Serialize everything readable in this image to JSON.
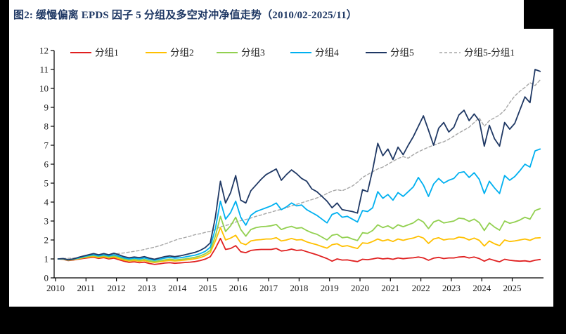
{
  "frame": {
    "bg": "#000000",
    "panel_bg": "#ffffff"
  },
  "title": {
    "text": "图2:  缓慢偏离 EPDS 因子 5 分组及多空对冲净值走势（2010/02-2025/11）",
    "color": "#1f3864"
  },
  "chart_data": {
    "type": "line",
    "title": "缓慢偏离 EPDS 因子 5 分组及多空对冲净值走势（2010/02-2025/11）",
    "xlabel": "",
    "ylabel": "",
    "ylim": [
      0,
      12
    ],
    "y_ticks": [
      0,
      1,
      2,
      3,
      4,
      5,
      6,
      7,
      8,
      9,
      10,
      11,
      12
    ],
    "x_ticks": [
      2010,
      2011,
      2012,
      2013,
      2014,
      2015,
      2016,
      2017,
      2018,
      2019,
      2020,
      2021,
      2022,
      2023,
      2024,
      2025
    ],
    "x": {
      "start": 2010.0833,
      "step": 0.16667,
      "unit": "year"
    },
    "grid": false,
    "legend_position": "top",
    "axis_color": "#000000",
    "tick_label_color": "#1a1a1a",
    "legend_label_color": "#1f1f1f",
    "series": [
      {
        "name": "分组1",
        "color": "#e02020",
        "dash": null,
        "values": [
          1.0,
          0.98,
          0.91,
          0.94,
          0.99,
          1.03,
          1.06,
          1.09,
          1.03,
          1.07,
          1.0,
          1.04,
          0.96,
          0.88,
          0.82,
          0.85,
          0.8,
          0.83,
          0.76,
          0.71,
          0.74,
          0.78,
          0.8,
          0.77,
          0.79,
          0.81,
          0.83,
          0.86,
          0.91,
          0.99,
          1.12,
          1.55,
          2.08,
          1.5,
          1.55,
          1.7,
          1.38,
          1.33,
          1.45,
          1.48,
          1.5,
          1.5,
          1.5,
          1.55,
          1.42,
          1.45,
          1.52,
          1.45,
          1.47,
          1.38,
          1.3,
          1.22,
          1.12,
          1.02,
          0.88,
          1.0,
          0.94,
          0.95,
          0.9,
          0.86,
          0.98,
          0.96,
          1.0,
          1.05,
          1.0,
          1.03,
          0.98,
          1.05,
          1.01,
          1.04,
          1.06,
          1.1,
          1.05,
          0.93,
          1.04,
          1.08,
          1.02,
          1.05,
          1.05,
          1.1,
          1.12,
          1.05,
          1.1,
          1.02,
          0.88,
          1.0,
          0.92,
          0.85,
          0.98,
          0.93,
          0.9,
          0.88,
          0.9,
          0.86,
          0.93,
          0.97
        ]
      },
      {
        "name": "分组2",
        "color": "#ffc000",
        "dash": null,
        "values": [
          1.0,
          0.99,
          0.93,
          0.96,
          1.01,
          1.06,
          1.1,
          1.13,
          1.07,
          1.12,
          1.05,
          1.1,
          1.02,
          0.94,
          0.89,
          0.92,
          0.88,
          0.91,
          0.85,
          0.81,
          0.85,
          0.89,
          0.92,
          0.89,
          0.91,
          0.94,
          0.97,
          1.01,
          1.07,
          1.17,
          1.33,
          1.95,
          2.65,
          2.0,
          2.1,
          2.25,
          1.85,
          1.75,
          1.95,
          2.0,
          2.02,
          2.05,
          2.05,
          2.12,
          1.95,
          2.0,
          2.08,
          2.0,
          2.02,
          1.9,
          1.82,
          1.75,
          1.65,
          1.57,
          1.75,
          1.8,
          1.66,
          1.7,
          1.62,
          1.55,
          1.85,
          1.82,
          1.92,
          2.05,
          1.95,
          2.02,
          1.92,
          2.05,
          1.98,
          2.05,
          2.1,
          2.2,
          2.1,
          1.82,
          2.05,
          2.12,
          2.0,
          2.05,
          2.05,
          2.15,
          2.12,
          2.0,
          2.1,
          1.98,
          1.68,
          1.95,
          1.8,
          1.7,
          2.0,
          1.92,
          1.95,
          2.0,
          2.05,
          1.98,
          2.1,
          2.12
        ]
      },
      {
        "name": "分组3",
        "color": "#92d050",
        "dash": null,
        "values": [
          1.0,
          1.0,
          0.94,
          0.98,
          1.03,
          1.09,
          1.14,
          1.18,
          1.12,
          1.17,
          1.1,
          1.16,
          1.08,
          0.99,
          0.94,
          0.97,
          0.93,
          0.97,
          0.9,
          0.86,
          0.9,
          0.95,
          0.99,
          0.95,
          0.97,
          1.0,
          1.04,
          1.09,
          1.16,
          1.27,
          1.45,
          2.2,
          3.25,
          2.45,
          2.75,
          3.2,
          2.55,
          2.2,
          2.55,
          2.65,
          2.7,
          2.72,
          2.75,
          2.82,
          2.55,
          2.65,
          2.72,
          2.62,
          2.65,
          2.5,
          2.38,
          2.3,
          2.15,
          2.0,
          2.25,
          2.3,
          2.12,
          2.15,
          2.05,
          1.97,
          2.38,
          2.35,
          2.5,
          2.8,
          2.65,
          2.75,
          2.6,
          2.8,
          2.7,
          2.8,
          2.9,
          3.1,
          2.95,
          2.6,
          2.95,
          3.05,
          2.9,
          2.95,
          3.0,
          3.15,
          3.12,
          2.98,
          3.1,
          2.92,
          2.5,
          2.9,
          2.68,
          2.52,
          3.0,
          2.88,
          2.95,
          3.05,
          3.2,
          3.1,
          3.55,
          3.65
        ]
      },
      {
        "name": "分组4",
        "color": "#00b0f0",
        "dash": null,
        "values": [
          1.0,
          1.01,
          0.95,
          0.99,
          1.05,
          1.12,
          1.18,
          1.22,
          1.16,
          1.22,
          1.15,
          1.22,
          1.14,
          1.05,
          1.0,
          1.04,
          1.0,
          1.05,
          0.98,
          0.93,
          0.98,
          1.04,
          1.08,
          1.04,
          1.06,
          1.1,
          1.15,
          1.2,
          1.28,
          1.4,
          1.62,
          2.6,
          4.05,
          3.1,
          3.45,
          4.05,
          3.2,
          2.78,
          3.3,
          3.5,
          3.6,
          3.7,
          3.8,
          3.95,
          3.6,
          3.75,
          3.95,
          3.8,
          3.85,
          3.6,
          3.45,
          3.3,
          3.1,
          2.9,
          3.35,
          3.45,
          3.2,
          3.25,
          3.1,
          2.95,
          3.55,
          3.5,
          3.7,
          4.55,
          4.2,
          4.4,
          4.1,
          4.5,
          4.3,
          4.55,
          4.8,
          5.3,
          4.9,
          4.3,
          4.95,
          5.25,
          5.0,
          5.15,
          5.25,
          5.55,
          5.6,
          5.3,
          5.55,
          5.2,
          4.45,
          5.1,
          4.75,
          4.45,
          5.4,
          5.15,
          5.35,
          5.65,
          6.0,
          5.85,
          6.7,
          6.8
        ]
      },
      {
        "name": "分组5",
        "color": "#1f3864",
        "dash": null,
        "values": [
          1.0,
          1.02,
          0.96,
          1.0,
          1.08,
          1.15,
          1.22,
          1.28,
          1.22,
          1.28,
          1.22,
          1.3,
          1.22,
          1.12,
          1.06,
          1.1,
          1.07,
          1.12,
          1.04,
          0.98,
          1.05,
          1.12,
          1.16,
          1.12,
          1.16,
          1.22,
          1.28,
          1.35,
          1.45,
          1.6,
          1.85,
          3.2,
          5.1,
          3.95,
          4.5,
          5.4,
          4.1,
          3.95,
          4.6,
          4.9,
          5.2,
          5.45,
          5.6,
          5.75,
          5.15,
          5.45,
          5.7,
          5.5,
          5.25,
          5.1,
          4.7,
          4.55,
          4.3,
          4.05,
          3.7,
          3.95,
          3.6,
          3.55,
          3.5,
          3.42,
          4.65,
          4.55,
          5.7,
          7.1,
          6.45,
          6.8,
          6.25,
          6.9,
          6.5,
          7.0,
          7.45,
          8.0,
          8.55,
          7.8,
          7.0,
          7.9,
          8.2,
          7.7,
          7.95,
          8.6,
          8.85,
          8.3,
          8.65,
          8.3,
          6.95,
          8.05,
          7.35,
          6.95,
          8.2,
          7.85,
          8.15,
          8.85,
          9.55,
          9.25,
          11.0,
          10.9
        ]
      },
      {
        "name": "分组5-分组1",
        "color": "#a6a6a6",
        "dash": "4 3",
        "values": [
          1.0,
          1.02,
          1.03,
          1.04,
          1.06,
          1.07,
          1.09,
          1.11,
          1.13,
          1.16,
          1.2,
          1.24,
          1.29,
          1.32,
          1.36,
          1.4,
          1.44,
          1.5,
          1.56,
          1.62,
          1.7,
          1.78,
          1.88,
          1.98,
          2.07,
          2.13,
          2.2,
          2.28,
          2.33,
          2.4,
          2.46,
          2.55,
          2.7,
          2.76,
          2.84,
          2.95,
          3.02,
          3.08,
          3.16,
          3.25,
          3.32,
          3.4,
          3.47,
          3.55,
          3.62,
          3.7,
          3.8,
          3.88,
          3.96,
          4.05,
          4.13,
          4.22,
          4.32,
          4.45,
          4.58,
          4.65,
          4.6,
          4.72,
          4.85,
          5.05,
          5.3,
          5.45,
          5.6,
          5.75,
          5.85,
          6.0,
          6.15,
          6.3,
          6.4,
          6.32,
          6.5,
          6.65,
          6.78,
          6.9,
          7.0,
          7.1,
          7.18,
          7.32,
          7.48,
          7.65,
          7.8,
          7.95,
          8.2,
          8.45,
          8.0,
          8.3,
          8.45,
          8.6,
          8.85,
          9.25,
          9.6,
          9.85,
          10.05,
          10.3,
          10.15,
          10.45
        ]
      }
    ]
  }
}
